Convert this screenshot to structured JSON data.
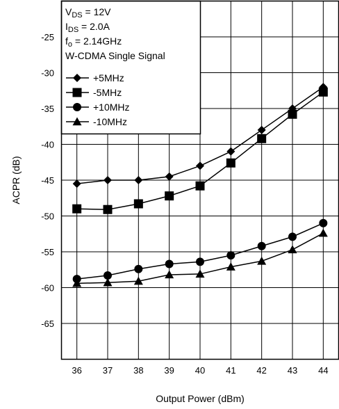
{
  "chart_data": {
    "type": "line",
    "title": "",
    "xlabel": "Output Power (dBm)",
    "ylabel": "ACPR (dB)",
    "xlim": [
      35.5,
      44.5
    ],
    "ylim": [
      -70,
      -20
    ],
    "x_ticks": [
      36,
      37,
      38,
      39,
      40,
      41,
      42,
      43,
      44
    ],
    "y_ticks": [
      -25,
      -30,
      -35,
      -40,
      -45,
      -50,
      -55,
      -60,
      -65
    ],
    "grid": "vertical",
    "legend_placement": "top-left",
    "conditions": [
      {
        "sym": "V",
        "sub": "DS",
        "val": " = 12V"
      },
      {
        "sym": "I",
        "sub": "DS",
        "val": " = 2.0A"
      },
      {
        "sym": "f",
        "sub": "o",
        "val": " = 2.14GHz"
      },
      {
        "sym": "W-CDMA Single Signal",
        "sub": "",
        "val": ""
      }
    ],
    "series": [
      {
        "name": "+5MHz",
        "marker": "diamond",
        "x": [
          36,
          37,
          38,
          39,
          40,
          41,
          42,
          43,
          44
        ],
        "values": [
          -45.5,
          -45.0,
          -45.0,
          -44.5,
          -43.0,
          -41.0,
          -38.0,
          -35.0,
          -32.0
        ]
      },
      {
        "name": "-5MHz",
        "marker": "square",
        "x": [
          36,
          37,
          38,
          39,
          40,
          41,
          42,
          43,
          44
        ],
        "values": [
          -49.0,
          -49.1,
          -48.3,
          -47.2,
          -45.8,
          -42.6,
          -39.2,
          -35.8,
          -32.7
        ]
      },
      {
        "name": "+10MHz",
        "marker": "circle",
        "x": [
          36,
          37,
          38,
          39,
          40,
          41,
          42,
          43,
          44
        ],
        "values": [
          -58.8,
          -58.3,
          -57.4,
          -56.7,
          -56.4,
          -55.5,
          -54.2,
          -52.9,
          -51.0
        ]
      },
      {
        "name": "-10MHz",
        "marker": "triangle",
        "x": [
          36,
          37,
          38,
          39,
          40,
          41,
          42,
          43,
          44
        ],
        "values": [
          -59.4,
          -59.3,
          -59.1,
          -58.2,
          -58.1,
          -57.1,
          -56.3,
          -54.7,
          -52.4
        ]
      }
    ]
  }
}
